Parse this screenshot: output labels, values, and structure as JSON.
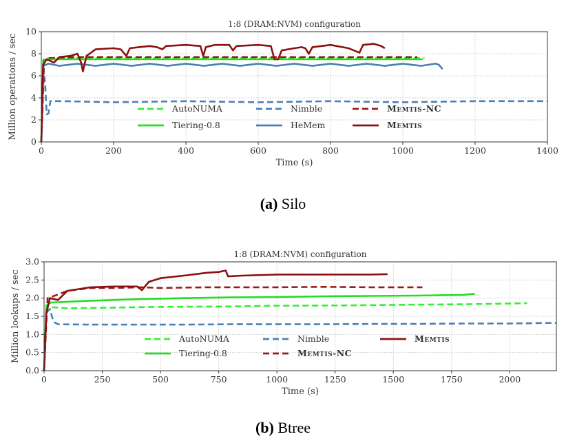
{
  "colors": {
    "autonuma": "#33ee33",
    "tiering": "#22dd22",
    "nimble": "#4a7fb5",
    "hemem": "#4a7fb5",
    "memtis_nc": "#9b1a1a",
    "memtis": "#8b1010",
    "grid": "#c8c8c8"
  },
  "captions": [
    {
      "label": "(a)",
      "text": "Silo"
    },
    {
      "label": "(b)",
      "text": "Btree"
    }
  ],
  "chart_data": [
    {
      "type": "line",
      "title": "1:8 (DRAM:NVM) configuration",
      "xlabel": "Time (s)",
      "ylabel": "Million operations / sec",
      "xlim": [
        0,
        1400
      ],
      "ylim": [
        0,
        10
      ],
      "xticks": [
        0,
        200,
        400,
        600,
        800,
        1000,
        1200,
        1400
      ],
      "yticks": [
        0,
        2,
        4,
        6,
        8,
        10
      ],
      "grid": true,
      "legend_position": "lower-center",
      "legend_columns": 3,
      "series": [
        {
          "name": "AutoNUMA",
          "style": "dashed",
          "color_key": "autonuma",
          "points": [
            [
              0,
              0
            ],
            [
              5,
              7.4
            ],
            [
              10,
              7.6
            ],
            [
              30,
              7.6
            ],
            [
              100,
              7.6
            ],
            [
              300,
              7.6
            ],
            [
              500,
              7.6
            ],
            [
              700,
              7.6
            ],
            [
              900,
              7.6
            ],
            [
              1000,
              7.6
            ],
            [
              1060,
              7.6
            ]
          ]
        },
        {
          "name": "Nimble",
          "style": "dashed",
          "color_key": "nimble",
          "points": [
            [
              0,
              0
            ],
            [
              3,
              2.5
            ],
            [
              6,
              6.5
            ],
            [
              10,
              5.5
            ],
            [
              15,
              2.5
            ],
            [
              20,
              2.6
            ],
            [
              25,
              3.7
            ],
            [
              60,
              3.7
            ],
            [
              200,
              3.6
            ],
            [
              400,
              3.7
            ],
            [
              600,
              3.6
            ],
            [
              800,
              3.7
            ],
            [
              1000,
              3.6
            ],
            [
              1200,
              3.7
            ],
            [
              1400,
              3.7
            ]
          ]
        },
        {
          "name": "Memtis-NC",
          "style": "dashed",
          "color_key": "memtis_nc",
          "points": [
            [
              0,
              0
            ],
            [
              8,
              7.4
            ],
            [
              20,
              7.6
            ],
            [
              100,
              7.7
            ],
            [
              300,
              7.7
            ],
            [
              500,
              7.7
            ],
            [
              700,
              7.7
            ],
            [
              900,
              7.7
            ],
            [
              1000,
              7.7
            ],
            [
              1040,
              7.7
            ]
          ]
        },
        {
          "name": "Tiering-0.8",
          "style": "solid",
          "color_key": "tiering",
          "points": [
            [
              0,
              0
            ],
            [
              5,
              7.0
            ],
            [
              10,
              7.4
            ],
            [
              30,
              7.5
            ],
            [
              100,
              7.5
            ],
            [
              300,
              7.5
            ],
            [
              500,
              7.5
            ],
            [
              700,
              7.5
            ],
            [
              900,
              7.5
            ],
            [
              1000,
              7.5
            ],
            [
              1055,
              7.5
            ]
          ]
        },
        {
          "name": "HeMem",
          "style": "solid",
          "color_key": "hemem",
          "points": [
            [
              0,
              0
            ],
            [
              6,
              6.9
            ],
            [
              20,
              7.1
            ],
            [
              50,
              6.9
            ],
            [
              100,
              7.1
            ],
            [
              150,
              6.9
            ],
            [
              200,
              7.1
            ],
            [
              250,
              6.9
            ],
            [
              300,
              7.1
            ],
            [
              350,
              6.9
            ],
            [
              400,
              7.1
            ],
            [
              450,
              6.9
            ],
            [
              500,
              7.1
            ],
            [
              550,
              6.9
            ],
            [
              600,
              7.1
            ],
            [
              650,
              6.9
            ],
            [
              700,
              7.1
            ],
            [
              750,
              6.9
            ],
            [
              800,
              7.1
            ],
            [
              850,
              6.9
            ],
            [
              900,
              7.1
            ],
            [
              950,
              6.9
            ],
            [
              1000,
              7.1
            ],
            [
              1050,
              6.9
            ],
            [
              1090,
              7.1
            ],
            [
              1100,
              7.0
            ],
            [
              1110,
              6.6
            ]
          ]
        },
        {
          "name": "Memtis",
          "style": "solid",
          "color_key": "memtis",
          "points": [
            [
              0,
              0
            ],
            [
              5,
              7.0
            ],
            [
              15,
              7.5
            ],
            [
              35,
              7.2
            ],
            [
              50,
              7.7
            ],
            [
              80,
              7.8
            ],
            [
              100,
              8.0
            ],
            [
              110,
              7.2
            ],
            [
              115,
              6.4
            ],
            [
              125,
              7.8
            ],
            [
              150,
              8.4
            ],
            [
              200,
              8.5
            ],
            [
              220,
              8.4
            ],
            [
              235,
              7.8
            ],
            [
              245,
              8.5
            ],
            [
              270,
              8.6
            ],
            [
              300,
              8.7
            ],
            [
              320,
              8.6
            ],
            [
              335,
              8.4
            ],
            [
              345,
              8.7
            ],
            [
              400,
              8.8
            ],
            [
              440,
              8.7
            ],
            [
              448,
              7.8
            ],
            [
              455,
              8.6
            ],
            [
              480,
              8.8
            ],
            [
              520,
              8.8
            ],
            [
              530,
              8.3
            ],
            [
              540,
              8.7
            ],
            [
              600,
              8.8
            ],
            [
              635,
              8.7
            ],
            [
              645,
              7.5
            ],
            [
              655,
              7.5
            ],
            [
              665,
              8.3
            ],
            [
              700,
              8.5
            ],
            [
              720,
              8.6
            ],
            [
              730,
              8.5
            ],
            [
              740,
              8.0
            ],
            [
              750,
              8.6
            ],
            [
              800,
              8.8
            ],
            [
              850,
              8.5
            ],
            [
              880,
              8.1
            ],
            [
              890,
              8.8
            ],
            [
              920,
              8.9
            ],
            [
              940,
              8.7
            ],
            [
              950,
              8.5
            ]
          ]
        }
      ]
    },
    {
      "type": "line",
      "title": "1:8 (DRAM:NVM) configuration",
      "xlabel": "Time (s)",
      "ylabel": "Million lookups / sec",
      "xlim": [
        0,
        2200
      ],
      "ylim": [
        0,
        3.0
      ],
      "xticks": [
        0,
        250,
        500,
        750,
        1000,
        1250,
        1500,
        1750,
        2000
      ],
      "yticks": [
        0.0,
        0.5,
        1.0,
        1.5,
        2.0,
        2.5,
        3.0
      ],
      "grid": true,
      "legend_position": "lower-center",
      "legend_columns": 3,
      "series": [
        {
          "name": "AutoNUMA",
          "style": "dashed",
          "color_key": "autonuma",
          "points": [
            [
              0,
              0
            ],
            [
              10,
              1.7
            ],
            [
              30,
              1.75
            ],
            [
              100,
              1.72
            ],
            [
              300,
              1.74
            ],
            [
              500,
              1.76
            ],
            [
              800,
              1.77
            ],
            [
              1000,
              1.79
            ],
            [
              1300,
              1.8
            ],
            [
              1600,
              1.82
            ],
            [
              1800,
              1.83
            ],
            [
              2075,
              1.86
            ]
          ]
        },
        {
          "name": "Nimble",
          "style": "dashed",
          "color_key": "nimble",
          "points": [
            [
              0,
              0
            ],
            [
              10,
              1.6
            ],
            [
              25,
              1.7
            ],
            [
              40,
              1.35
            ],
            [
              60,
              1.28
            ],
            [
              200,
              1.27
            ],
            [
              400,
              1.27
            ],
            [
              600,
              1.27
            ],
            [
              800,
              1.28
            ],
            [
              1000,
              1.28
            ],
            [
              1200,
              1.28
            ],
            [
              1400,
              1.29
            ],
            [
              1600,
              1.29
            ],
            [
              1800,
              1.3
            ],
            [
              2000,
              1.3
            ],
            [
              2200,
              1.32
            ]
          ]
        },
        {
          "name": "Memtis-NC",
          "style": "dashed",
          "color_key": "memtis_nc",
          "points": [
            [
              0,
              0
            ],
            [
              15,
              2.0
            ],
            [
              60,
              2.1
            ],
            [
              100,
              2.2
            ],
            [
              200,
              2.28
            ],
            [
              300,
              2.28
            ],
            [
              420,
              2.3
            ],
            [
              500,
              2.28
            ],
            [
              700,
              2.3
            ],
            [
              900,
              2.3
            ],
            [
              1000,
              2.3
            ],
            [
              1200,
              2.31
            ],
            [
              1400,
              2.3
            ],
            [
              1600,
              2.3
            ],
            [
              1625,
              2.3
            ]
          ]
        },
        {
          "name": "Tiering-0.8",
          "style": "solid",
          "color_key": "tiering",
          "points": [
            [
              0,
              0
            ],
            [
              10,
              1.8
            ],
            [
              30,
              1.88
            ],
            [
              100,
              1.9
            ],
            [
              200,
              1.93
            ],
            [
              400,
              1.97
            ],
            [
              600,
              2.0
            ],
            [
              800,
              2.02
            ],
            [
              1000,
              2.03
            ],
            [
              1200,
              2.05
            ],
            [
              1400,
              2.06
            ],
            [
              1600,
              2.07
            ],
            [
              1800,
              2.09
            ],
            [
              1850,
              2.12
            ]
          ]
        },
        {
          "name": "Memtis",
          "style": "solid",
          "color_key": "memtis",
          "points": [
            [
              0,
              0
            ],
            [
              10,
              1.6
            ],
            [
              25,
              2.0
            ],
            [
              60,
              1.95
            ],
            [
              100,
              2.2
            ],
            [
              150,
              2.25
            ],
            [
              200,
              2.3
            ],
            [
              300,
              2.32
            ],
            [
              400,
              2.32
            ],
            [
              420,
              2.22
            ],
            [
              450,
              2.45
            ],
            [
              500,
              2.55
            ],
            [
              600,
              2.62
            ],
            [
              700,
              2.7
            ],
            [
              750,
              2.72
            ],
            [
              780,
              2.76
            ],
            [
              790,
              2.6
            ],
            [
              850,
              2.62
            ],
            [
              950,
              2.64
            ],
            [
              1000,
              2.65
            ],
            [
              1200,
              2.65
            ],
            [
              1400,
              2.65
            ],
            [
              1475,
              2.66
            ]
          ]
        }
      ]
    }
  ]
}
